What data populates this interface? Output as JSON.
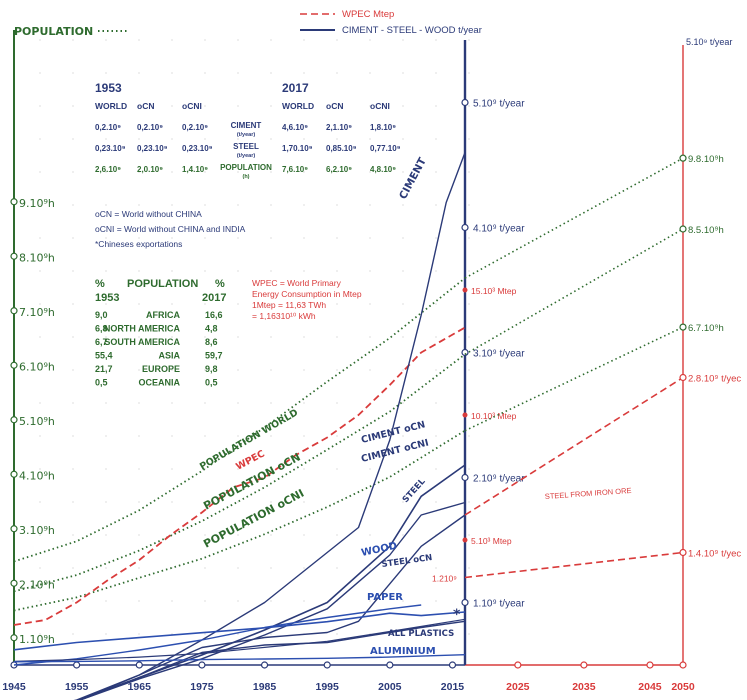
{
  "chart_data": {
    "type": "line",
    "x_range": [
      1945,
      2050
    ],
    "x_ticks": [
      "1945",
      "1955",
      "1965",
      "1975",
      "1985",
      "1995",
      "2005",
      "2015",
      "2025",
      "2035",
      "2045",
      "2050"
    ],
    "left_axis_label": "POPULATION",
    "left_ticks": [
      "1.10⁹h",
      "2.10⁹h",
      "3.10⁹h",
      "4.10⁹h",
      "5.10⁹h",
      "6.10⁹h",
      "7.10⁹h",
      "8.10⁹h",
      "9.10⁹h"
    ],
    "center_axis_ticks": [
      "1.10⁹ t/year",
      "2.10⁹ t/year",
      "3.10⁹ t/year",
      "4.10⁹ t/year",
      "5.10⁹ t/year"
    ],
    "wpec_ticks": [
      "5.10³ Mtep",
      "10.10³ Mtep",
      "15.10³ Mtep"
    ],
    "legend": {
      "wpec": "WPEC Mtep",
      "material": "CIMENT - STEEL - WOOD t/year"
    },
    "colors": {
      "population": "#2e6b2e",
      "wpec": "#d93b3b",
      "material": "#2b3a78",
      "paper": "#2c4fb0",
      "axis_left": "#2e6b2e",
      "axis_center": "#2b3a78",
      "axis_right": "#d93b3b"
    },
    "series": [
      {
        "key": "pop_world",
        "name": "POPULATION WORLD",
        "unit": "10⁹ h",
        "x": [
          1945,
          1955,
          1965,
          1975,
          1985,
          1995,
          2005,
          2017
        ],
        "values": [
          2.4,
          2.77,
          3.34,
          4.06,
          4.86,
          5.7,
          6.5,
          7.6
        ]
      },
      {
        "key": "pop_ocn",
        "name": "POPULATION oCN",
        "unit": "10⁹ h",
        "x": [
          1945,
          1955,
          1965,
          1975,
          1985,
          1995,
          2005,
          2017
        ],
        "values": [
          1.85,
          2.15,
          2.6,
          3.14,
          3.76,
          4.45,
          5.15,
          6.2
        ]
      },
      {
        "key": "pop_ocni",
        "name": "POPULATION oCNI",
        "unit": "10⁹ h",
        "x": [
          1945,
          1955,
          1965,
          1975,
          1985,
          1995,
          2005,
          2017
        ],
        "values": [
          1.5,
          1.74,
          2.1,
          2.45,
          2.9,
          3.4,
          3.95,
          4.8
        ]
      },
      {
        "key": "wpec",
        "name": "WPEC",
        "unit": "10³ Mtep",
        "x": [
          1945,
          1950,
          1955,
          1960,
          1965,
          1970,
          1975,
          1980,
          1985,
          1990,
          1995,
          2000,
          2005,
          2010,
          2017
        ],
        "values": [
          1.6,
          1.8,
          2.5,
          3.4,
          4.2,
          5.2,
          6.1,
          7.1,
          7.5,
          8.4,
          9.1,
          10.0,
          11.2,
          12.5,
          13.5
        ]
      },
      {
        "key": "ciment",
        "name": "CIMENT",
        "unit": "10⁹ t/year",
        "x": [
          1945,
          1955,
          1965,
          1975,
          1985,
          1995,
          2000,
          2005,
          2010,
          2014,
          2017
        ],
        "values": [
          0.05,
          0.21,
          0.42,
          0.7,
          1.0,
          1.4,
          1.6,
          2.3,
          3.3,
          4.2,
          4.6
        ]
      },
      {
        "key": "ciment_ocn",
        "name": "CIMENT oCN",
        "unit": "10⁹ t/year",
        "x": [
          1945,
          1955,
          1965,
          1975,
          1985,
          1995,
          2005,
          2010,
          2017
        ],
        "values": [
          0.05,
          0.21,
          0.4,
          0.58,
          0.78,
          1.0,
          1.45,
          1.85,
          2.1
        ]
      },
      {
        "key": "ciment_ocni",
        "name": "CIMENT oCNI",
        "unit": "10⁹ t/year",
        "x": [
          1945,
          1955,
          1965,
          1975,
          1985,
          1995,
          2005,
          2010,
          2017
        ],
        "values": [
          0.05,
          0.21,
          0.39,
          0.55,
          0.74,
          0.95,
          1.38,
          1.7,
          1.8
        ]
      },
      {
        "key": "steel",
        "name": "STEEL",
        "unit": "10⁹ t/year",
        "x": [
          1945,
          1955,
          1965,
          1975,
          1985,
          1995,
          2000,
          2005,
          2010,
          2017
        ],
        "values": [
          0.1,
          0.22,
          0.42,
          0.64,
          0.72,
          0.76,
          0.85,
          1.15,
          1.45,
          1.7
        ]
      },
      {
        "key": "steel_ocn",
        "name": "STEEL oCN",
        "unit": "10⁹ t/year",
        "x": [
          1945,
          1955,
          1965,
          1975,
          1985,
          1995,
          2005,
          2010,
          2017
        ],
        "values": [
          0.1,
          0.21,
          0.4,
          0.6,
          0.66,
          0.68,
          0.76,
          0.8,
          0.85
        ]
      },
      {
        "key": "wood",
        "name": "WOOD",
        "unit": "10⁹ t/year",
        "x": [
          1945,
          1955,
          1965,
          1975,
          1985,
          1995,
          2005,
          2010
        ],
        "values": [
          0.5,
          0.55,
          0.62,
          0.7,
          0.8,
          0.88,
          0.95,
          0.98
        ]
      },
      {
        "key": "paper",
        "name": "PAPER",
        "unit": "10⁹ t/year",
        "x": [
          1945,
          1955,
          1965,
          1975,
          1985,
          1995,
          2005,
          2010,
          2017
        ],
        "values": [
          0.1,
          0.16,
          0.2,
          0.24,
          0.28,
          0.33,
          0.4,
          0.38,
          0.41
        ]
      },
      {
        "key": "plastics",
        "name": "ALL PLASTICS",
        "unit": "10⁹ t/year",
        "x": [
          1945,
          1955,
          1965,
          1975,
          1985,
          1995,
          2005,
          2017
        ],
        "values": [
          0.005,
          0.02,
          0.04,
          0.07,
          0.12,
          0.17,
          0.25,
          0.35
        ]
      },
      {
        "key": "aluminium",
        "name": "ALUMINIUM",
        "unit": "10⁹ t/year",
        "x": [
          1945,
          1955,
          1965,
          1975,
          1985,
          1995,
          2005,
          2017
        ],
        "values": [
          0.002,
          0.005,
          0.01,
          0.02,
          0.025,
          0.03,
          0.04,
          0.06
        ]
      }
    ],
    "projections": [
      {
        "name": "POPULATION WORLD",
        "from": [
          2017,
          7.6
        ],
        "to": [
          2050,
          9.8
        ],
        "label": "9.8.10⁹h"
      },
      {
        "name": "POPULATION oCN",
        "from": [
          2017,
          6.2
        ],
        "to": [
          2050,
          8.5
        ],
        "label": "8.5.10⁹h"
      },
      {
        "name": "POPULATION oCNI",
        "from": [
          2017,
          4.8
        ],
        "to": [
          2050,
          6.7
        ],
        "label": "6.7.10⁹h"
      },
      {
        "name": "STEEL",
        "from": [
          2017,
          1.7
        ],
        "to": [
          2050,
          2.8
        ],
        "label": "2.8.10⁹ t/yec"
      },
      {
        "name": "STEEL FROM IRON ORE",
        "from": [
          2017,
          1.2
        ],
        "to": [
          2050,
          1.4
        ],
        "label": "1.4.10⁹ t/yec"
      }
    ],
    "right_axis_top_label": "5.10⁹ t/year",
    "steel_2017_label": "1.210⁹",
    "steel_iron_ore_label": "STEEL FROM IRON ORE",
    "inline_labels": {
      "ciment": "CIMENT",
      "ciment_ocn": "CIMENT oCN",
      "ciment_ocni": "CIMENT oCNI",
      "steel": "STEEL",
      "steel_ocn": "STEEL oCN",
      "wood": "WOOD",
      "paper": "PAPER",
      "plastics": "ALL PLASTICS",
      "aluminium": "ALUMINIUM",
      "wpec": "WPEC",
      "pop_world": "POPULATION WORLD",
      "pop_ocn": "POPULATION oCN",
      "pop_ocni": "POPULATION oCNI"
    },
    "table_1953_2017": {
      "years": [
        "1953",
        "2017"
      ],
      "col_headers": [
        "WORLD",
        "oCN",
        "oCNI"
      ],
      "rows": [
        {
          "label": "CIMENT",
          "sub": "(t/year)",
          "v1953": [
            "0,2.10⁹",
            "0,2.10⁹",
            "0,2.10⁹"
          ],
          "v2017": [
            "4,6.10⁹",
            "2,1.10⁹",
            "1,8.10⁹"
          ]
        },
        {
          "label": "STEEL",
          "sub": "(t/year)",
          "v1953": [
            "0,23.10⁹",
            "0,23.10⁹",
            "0,23.10⁹"
          ],
          "v2017": [
            "1,70.10⁹",
            "0,85.10⁹",
            "0,77.10⁹"
          ]
        },
        {
          "label": "POPULATION",
          "sub": "(h)",
          "v1953": [
            "2,6.10⁹",
            "2,0.10⁹",
            "1,4.10⁹"
          ],
          "v2017": [
            "7,6.10⁹",
            "6,2.10⁹",
            "4,8.10⁹"
          ]
        }
      ]
    },
    "notes": [
      "oCN = World without CHINA",
      "oCNI = World without CHINA and INDIA",
      "*Chineses exportations"
    ],
    "population_table": {
      "title": "POPULATION",
      "pct": "%",
      "years": [
        "1953",
        "2017"
      ],
      "rows": [
        [
          "9,0",
          "AFRICA",
          "16,6"
        ],
        [
          "6,8",
          "NORTH AMERICA",
          "4,8"
        ],
        [
          "6,7",
          "SOUTH AMERICA",
          "8,6"
        ],
        [
          "55,4",
          "ASIA",
          "59,7"
        ],
        [
          "21,7",
          "EUROPE",
          "9,8"
        ],
        [
          "0,5",
          "OCEANIA",
          "0,5"
        ]
      ]
    },
    "wpec_note": [
      "WPEC = World Primary",
      "Energy Consumption in Mtep",
      "1Mtep = 11,63 TWh",
      "= 1,16310¹⁰ kWh"
    ]
  }
}
